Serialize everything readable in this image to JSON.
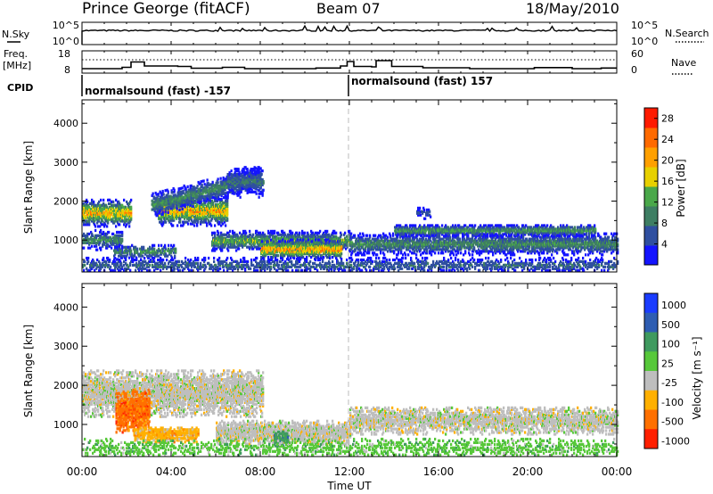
{
  "header": {
    "station": "Prince George (fitACF)",
    "beam": "Beam 07",
    "date": "18/May/2010"
  },
  "strip": {
    "nsky_label": "N.Sky",
    "freq_label_top": "Freq.",
    "freq_label_unit": "[MHz]",
    "cpid_label": "CPID",
    "nsearch_label": "N.Search",
    "nave_label": "Nave",
    "nsky_ticks": [
      "10^5",
      "10^0"
    ],
    "nsearch_ticks": [
      "10^5",
      "10^0"
    ],
    "freq_ticks": [
      "18",
      "8"
    ],
    "nave_ticks": [
      "60",
      "0"
    ],
    "cpid_entries": [
      {
        "text": "normalsound (fast) -157",
        "start_hour": 0
      },
      {
        "text": "normalsound (fast) 157",
        "start_hour": 12
      }
    ],
    "freq_steps": [
      [
        0,
        10
      ],
      [
        1.8,
        10.6
      ],
      [
        2.2,
        13
      ],
      [
        2.8,
        11.2
      ],
      [
        4.3,
        11
      ],
      [
        4.9,
        10.2
      ],
      [
        6.3,
        10.6
      ],
      [
        7.3,
        10
      ],
      [
        10.5,
        10.3
      ],
      [
        11.6,
        11.2
      ],
      [
        11.9,
        13.2
      ],
      [
        12.2,
        11
      ],
      [
        13,
        10.8
      ],
      [
        13.2,
        13.6
      ],
      [
        13.9,
        11
      ],
      [
        15.3,
        10.4
      ],
      [
        17.4,
        10
      ],
      [
        20.3,
        10.5
      ],
      [
        22,
        10
      ],
      [
        23.3,
        10.3
      ],
      [
        24,
        10.3
      ]
    ]
  },
  "chart_data": [
    {
      "type": "heatmap",
      "title": "Power",
      "xlabel": "Time UT",
      "ylabel": "Slant Range [km]",
      "xlim": [
        "00:00",
        "24:00"
      ],
      "ylim": [
        180,
        4600
      ],
      "x_ticks": [
        "00:00",
        "04:00",
        "08:00",
        "12:00",
        "16:00",
        "20:00",
        "00:00"
      ],
      "y_ticks": [
        1000,
        2000,
        3000,
        4000
      ],
      "colorbar_label": "Power [dB]",
      "colorbar_ticks": [
        4,
        8,
        12,
        16,
        20,
        24,
        28
      ],
      "colorbar_range": [
        0,
        30
      ],
      "colors": [
        "#1414ff",
        "#2f4fa0",
        "#3e7e63",
        "#4aa84a",
        "#e7d000",
        "#ffa000",
        "#ff6a00",
        "#ff1a00"
      ],
      "echo_regions": [
        {
          "t0": 0,
          "t1": 2.2,
          "r_center": 1700,
          "r_width": 350,
          "max_db": 26,
          "density": 0.95
        },
        {
          "t0": 3.4,
          "t1": 6.5,
          "r_center": 1750,
          "r_width": 380,
          "max_db": 26,
          "density": 0.95
        },
        {
          "t0": 3.1,
          "t1": 8,
          "r_center_start": 1900,
          "r_center_end": 2600,
          "r_width": 300,
          "max_db": 14,
          "density": 0.8
        },
        {
          "t0": 6.5,
          "t1": 8.1,
          "r_center": 2500,
          "r_width": 400,
          "max_db": 10,
          "density": 0.6
        },
        {
          "t0": 0,
          "t1": 1.8,
          "r_center": 1000,
          "r_width": 250,
          "max_db": 14,
          "density": 0.7
        },
        {
          "t0": 1.4,
          "t1": 4.2,
          "r_center": 700,
          "r_width": 200,
          "max_db": 14,
          "density": 0.6
        },
        {
          "t0": 5.8,
          "t1": 12,
          "r_center": 980,
          "r_width": 250,
          "max_db": 18,
          "density": 0.9
        },
        {
          "t0": 8,
          "t1": 11.6,
          "r_center": 760,
          "r_width": 250,
          "max_db": 28,
          "density": 0.95
        },
        {
          "t0": 12,
          "t1": 24,
          "r_center": 900,
          "r_width": 280,
          "max_db": 14,
          "density": 0.85
        },
        {
          "t0": 14,
          "t1": 23,
          "r_center": 1250,
          "r_width": 150,
          "max_db": 16,
          "density": 0.9
        },
        {
          "t0": 0,
          "t1": 24,
          "r_center": 350,
          "r_width": 220,
          "max_db": 10,
          "density": 0.45
        },
        {
          "t0": 15,
          "t1": 15.6,
          "r_center": 1700,
          "r_width": 150,
          "max_db": 8,
          "density": 0.6
        }
      ]
    },
    {
      "type": "heatmap",
      "title": "Velocity",
      "xlabel": "Time UT",
      "ylabel": "Slant Range [km]",
      "xlim": [
        "00:00",
        "24:00"
      ],
      "ylim": [
        180,
        4600
      ],
      "x_ticks": [
        "00:00",
        "04:00",
        "08:00",
        "12:00",
        "16:00",
        "20:00",
        "00:00"
      ],
      "y_ticks": [
        1000,
        2000,
        3000,
        4000
      ],
      "colorbar_label": "Velocity [m s⁻¹]",
      "colorbar_ticks": [
        "1000",
        "500",
        "100",
        "25",
        "-25",
        "-100",
        "-500",
        "-1000"
      ],
      "colors": [
        "#1a3cff",
        "#2e5db2",
        "#3f9a5f",
        "#57c83a",
        "#bebebe",
        "#ffb000",
        "#ff7000",
        "#ff1f00"
      ],
      "echo_regions": [
        {
          "t0": 0,
          "t1": 8.1,
          "r_center": 1800,
          "r_width": 600,
          "velocity_class": 4,
          "density": 0.85
        },
        {
          "t0": 1.5,
          "t1": 3,
          "r_center": 1350,
          "r_width": 550,
          "velocity_class": 6,
          "density": 0.9
        },
        {
          "t0": 2.3,
          "t1": 5.2,
          "r_center": 750,
          "r_width": 200,
          "velocity_class": 5,
          "density": 0.85
        },
        {
          "t0": 6,
          "t1": 12,
          "r_center": 800,
          "r_width": 300,
          "velocity_class": 4,
          "density": 0.85
        },
        {
          "t0": 8.6,
          "t1": 9.2,
          "r_center": 650,
          "r_width": 200,
          "velocity_class": 2,
          "density": 0.95
        },
        {
          "t0": 12,
          "t1": 24,
          "r_center": 1100,
          "r_width": 350,
          "velocity_class": 4,
          "density": 0.75
        },
        {
          "t0": 0,
          "t1": 24,
          "r_center": 380,
          "r_width": 250,
          "velocity_class": 3,
          "density": 0.35
        }
      ]
    }
  ]
}
